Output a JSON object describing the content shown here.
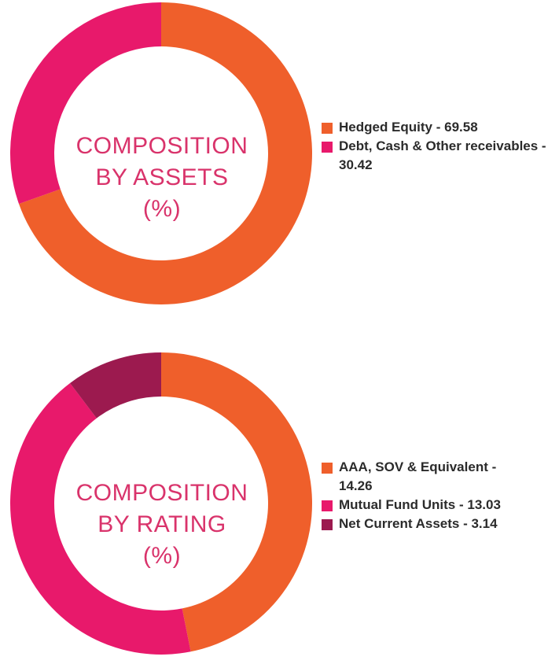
{
  "colors": {
    "orange": "#ef5f2b",
    "pink": "#e8196b",
    "maroon": "#9c1a4f",
    "title": "#d9336b"
  },
  "chart_data": [
    {
      "type": "pie",
      "donut": true,
      "title_lines": [
        "COMPOSITION",
        "BY ASSETS",
        "(%)"
      ],
      "legend_position": "right",
      "slices": [
        {
          "label": "Hedged Equity - 69.58",
          "value": 69.58,
          "color": "#ef5f2b"
        },
        {
          "label": "Debt, Cash & Other receivables - 30.42",
          "value": 30.42,
          "color": "#e8196b"
        }
      ]
    },
    {
      "type": "pie",
      "donut": true,
      "title_lines": [
        "COMPOSITION",
        "BY RATING",
        "(%)"
      ],
      "legend_position": "right",
      "slices": [
        {
          "label": "AAA, SOV & Equivalent - 14.26",
          "value": 14.26,
          "color": "#ef5f2b"
        },
        {
          "label": "Mutual Fund Units - 13.03",
          "value": 13.03,
          "color": "#e8196b"
        },
        {
          "label": "Net Current Assets - 3.14",
          "value": 3.14,
          "color": "#9c1a4f"
        }
      ]
    }
  ]
}
